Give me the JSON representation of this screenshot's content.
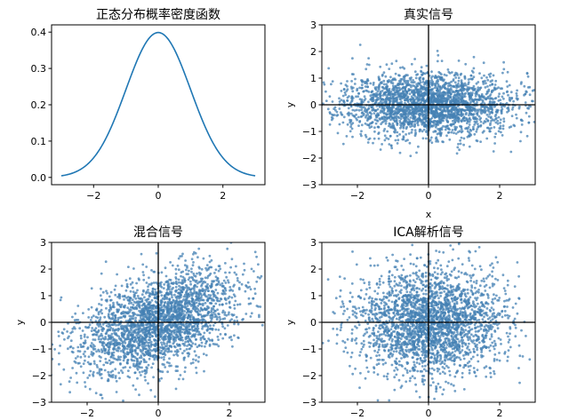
{
  "chart_data": [
    {
      "id": "pdf",
      "type": "line",
      "title": "正态分布概率密度函数",
      "xlabel": "",
      "ylabel": "",
      "xlim": [
        -3.3,
        3.3
      ],
      "ylim": [
        -0.02,
        0.42
      ],
      "xticks": [
        -2,
        0,
        2
      ],
      "yticks": [
        0.0,
        0.1,
        0.2,
        0.3,
        0.4
      ],
      "x": [
        -3.0,
        -2.75,
        -2.5,
        -2.25,
        -2.0,
        -1.75,
        -1.5,
        -1.25,
        -1.0,
        -0.75,
        -0.5,
        -0.25,
        0.0,
        0.25,
        0.5,
        0.75,
        1.0,
        1.25,
        1.5,
        1.75,
        2.0,
        2.25,
        2.5,
        2.75,
        3.0
      ],
      "y": [
        0.0044,
        0.0091,
        0.0175,
        0.0317,
        0.054,
        0.0863,
        0.1295,
        0.1826,
        0.242,
        0.3011,
        0.3521,
        0.3867,
        0.3989,
        0.3867,
        0.3521,
        0.3011,
        0.242,
        0.1826,
        0.1295,
        0.0863,
        0.054,
        0.0317,
        0.0175,
        0.0091,
        0.0044
      ],
      "color": "#1f77b4"
    },
    {
      "id": "true",
      "type": "scatter",
      "title": "真实信号",
      "xlabel": "x",
      "ylabel": "y",
      "xlim": [
        -3,
        3
      ],
      "ylim": [
        -3,
        3
      ],
      "xticks": [
        -2,
        0,
        2
      ],
      "yticks": [
        -3,
        -2,
        -1,
        0,
        1,
        2,
        3
      ],
      "reference_lines": {
        "x": 0,
        "y": 0
      },
      "distribution": {
        "x_spread": 1.2,
        "y_spread": 0.6,
        "correlation": 0.0
      },
      "color": "#4682b4"
    },
    {
      "id": "mixed",
      "type": "scatter",
      "title": "混合信号",
      "xlabel": "",
      "ylabel": "y",
      "xlim": [
        -3,
        3
      ],
      "ylim": [
        -3,
        3
      ],
      "xticks": [
        -2,
        0,
        2
      ],
      "yticks": [
        -3,
        -2,
        -1,
        0,
        1,
        2,
        3
      ],
      "reference_lines": {
        "x": 0,
        "y": 0
      },
      "distribution": {
        "x_spread": 1.1,
        "y_spread": 0.95,
        "correlation": 0.45
      },
      "color": "#4682b4"
    },
    {
      "id": "ica",
      "type": "scatter",
      "title": "ICA解析信号",
      "xlabel": "",
      "ylabel": "y",
      "xlim": [
        -3,
        3
      ],
      "ylim": [
        -3,
        3
      ],
      "xticks": [
        -2,
        0,
        2
      ],
      "yticks": [
        -3,
        -2,
        -1,
        0,
        1,
        2,
        3
      ],
      "reference_lines": {
        "x": 0,
        "y": 0
      },
      "distribution": {
        "x_spread": 1.0,
        "y_spread": 1.0,
        "correlation": 0.0
      },
      "color": "#4682b4"
    }
  ]
}
